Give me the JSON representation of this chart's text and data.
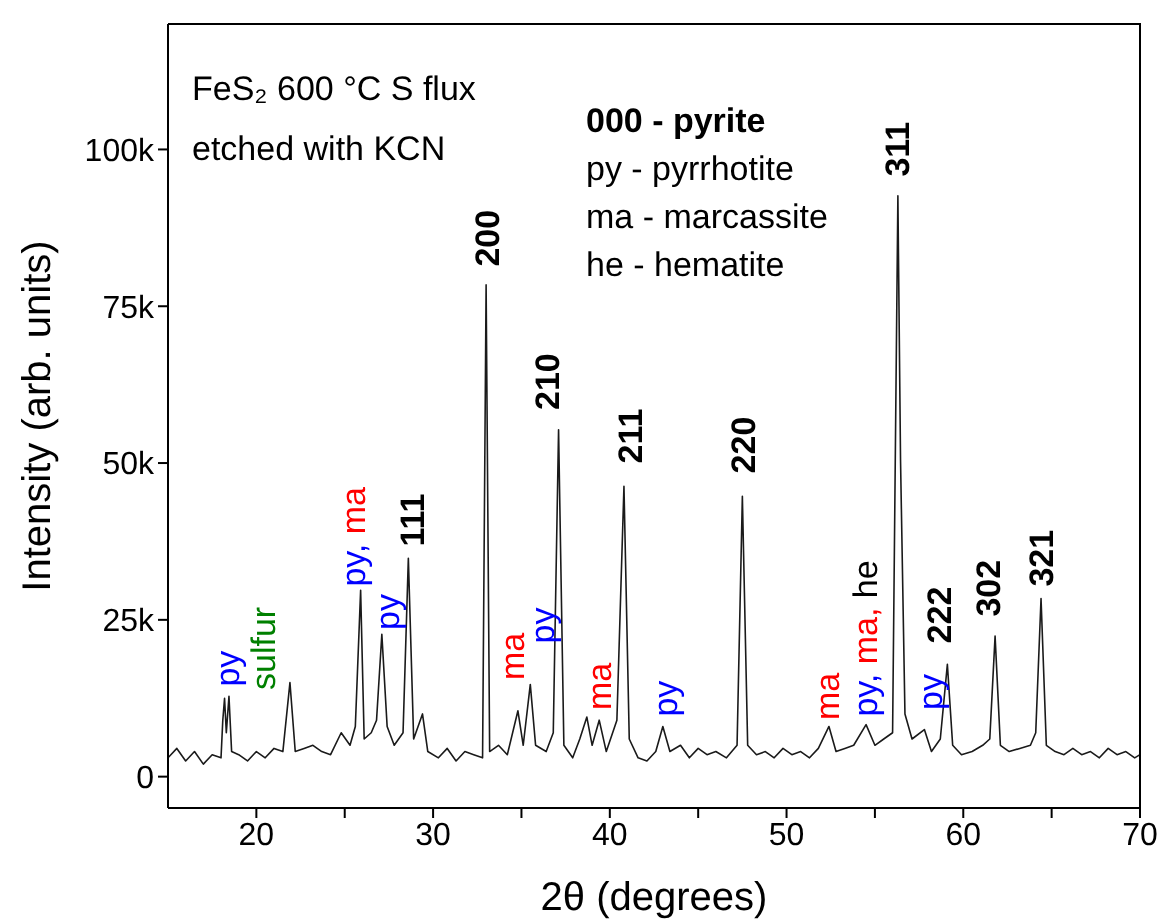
{
  "chart_data": {
    "type": "line",
    "xlabel": "2θ (degrees)",
    "ylabel": "Intensity (arb. units)",
    "xlim": [
      15,
      70
    ],
    "xticks": [
      20,
      {
        "value": 25,
        "label": null
      },
      30,
      {
        "value": 35,
        "label": null
      },
      40,
      {
        "value": 45,
        "label": null
      },
      50,
      {
        "value": 55,
        "label": null
      },
      60,
      {
        "value": 65,
        "label": null
      },
      70
    ],
    "ylim": [
      -5000,
      120000
    ],
    "yticks": [
      0,
      {
        "value": 25000,
        "label": "25k"
      },
      {
        "value": 50000,
        "label": "50k"
      },
      {
        "value": 75000,
        "label": "75k"
      },
      {
        "value": 100000,
        "label": "100k"
      }
    ],
    "marker": "none",
    "line_style": "solid",
    "x": [
      15,
      15.5,
      16,
      16.5,
      17,
      17.5,
      18,
      18.1,
      18.2,
      18.3,
      18.45,
      18.6,
      19,
      19.5,
      20,
      20.5,
      21,
      21.5,
      21.9,
      22.2,
      22.7,
      23.2,
      23.7,
      24.2,
      24.8,
      25.3,
      25.6,
      25.9,
      26.1,
      26.5,
      26.8,
      27.1,
      27.4,
      27.8,
      28.3,
      28.6,
      28.9,
      29.4,
      29.7,
      30.3,
      30.8,
      31.3,
      31.8,
      32.3,
      32.8,
      33.0,
      33.2,
      33.7,
      34.2,
      34.8,
      35.1,
      35.5,
      35.8,
      36.4,
      36.8,
      37.1,
      37.4,
      37.9,
      38.3,
      38.7,
      39.0,
      39.4,
      39.8,
      40.4,
      40.8,
      41.1,
      41.6,
      42.1,
      42.6,
      43.0,
      43.4,
      44,
      44.5,
      45,
      45.5,
      46,
      46.6,
      47.2,
      47.5,
      47.8,
      48.3,
      48.8,
      49.3,
      49.8,
      50.3,
      50.8,
      51.3,
      51.8,
      52.4,
      52.8,
      53.3,
      53.8,
      54.5,
      55,
      55.5,
      56.0,
      56.3,
      56.45,
      56.7,
      57.1,
      57.8,
      58.2,
      58.7,
      59.1,
      59.4,
      59.9,
      60.5,
      61.1,
      61.5,
      61.8,
      62.1,
      62.6,
      63.2,
      63.8,
      64.1,
      64.4,
      64.7,
      65.2,
      65.7,
      66.2,
      66.7,
      67.2,
      67.7,
      68.2,
      68.7,
      69.2,
      69.7,
      70
    ],
    "series": [
      {
        "color": "#1a1a1a",
        "values": [
          3000,
          4500,
          2500,
          4000,
          2000,
          3500,
          3000,
          9000,
          12500,
          7000,
          12800,
          4000,
          3500,
          2500,
          4000,
          3000,
          4500,
          4000,
          15000,
          4000,
          4500,
          5000,
          4000,
          3500,
          7000,
          5000,
          8000,
          29700,
          6000,
          7000,
          9000,
          22700,
          8000,
          5000,
          7000,
          34800,
          6000,
          10000,
          4000,
          3000,
          4500,
          2500,
          4000,
          3500,
          3000,
          78400,
          4000,
          5000,
          3500,
          10500,
          5000,
          14700,
          5000,
          4000,
          7000,
          55300,
          5000,
          3000,
          6000,
          9500,
          5000,
          9000,
          4000,
          9000,
          46300,
          6000,
          3000,
          2500,
          4000,
          8000,
          4000,
          5000,
          3000,
          4500,
          3500,
          4000,
          3000,
          5000,
          44700,
          5000,
          3500,
          4000,
          3000,
          4500,
          3500,
          4000,
          3000,
          4500,
          8000,
          4000,
          4500,
          5000,
          8300,
          5000,
          6000,
          7000,
          92600,
          50500,
          10000,
          6000,
          7500,
          4000,
          6000,
          17900,
          5000,
          3500,
          4000,
          5000,
          6000,
          22400,
          5000,
          4000,
          4500,
          5000,
          7000,
          28400,
          5000,
          4000,
          3500,
          4500,
          3500,
          4000,
          3000,
          4500,
          3500,
          4000,
          3000,
          3500
        ]
      }
    ],
    "annotations": [
      "FeS₂ 600 °C S flux",
      "etched with KCN",
      "000 - pyrite",
      "py - pyrrhotite",
      "ma - marcassite",
      "he - hematite",
      "py",
      "sulfur",
      "py, ma",
      "py",
      "111",
      "200",
      "ma",
      "py",
      "210",
      "ma",
      "211",
      "py",
      "220",
      "ma",
      "py, ma, he",
      "311",
      "py",
      "222",
      "302",
      "321"
    ]
  }
}
